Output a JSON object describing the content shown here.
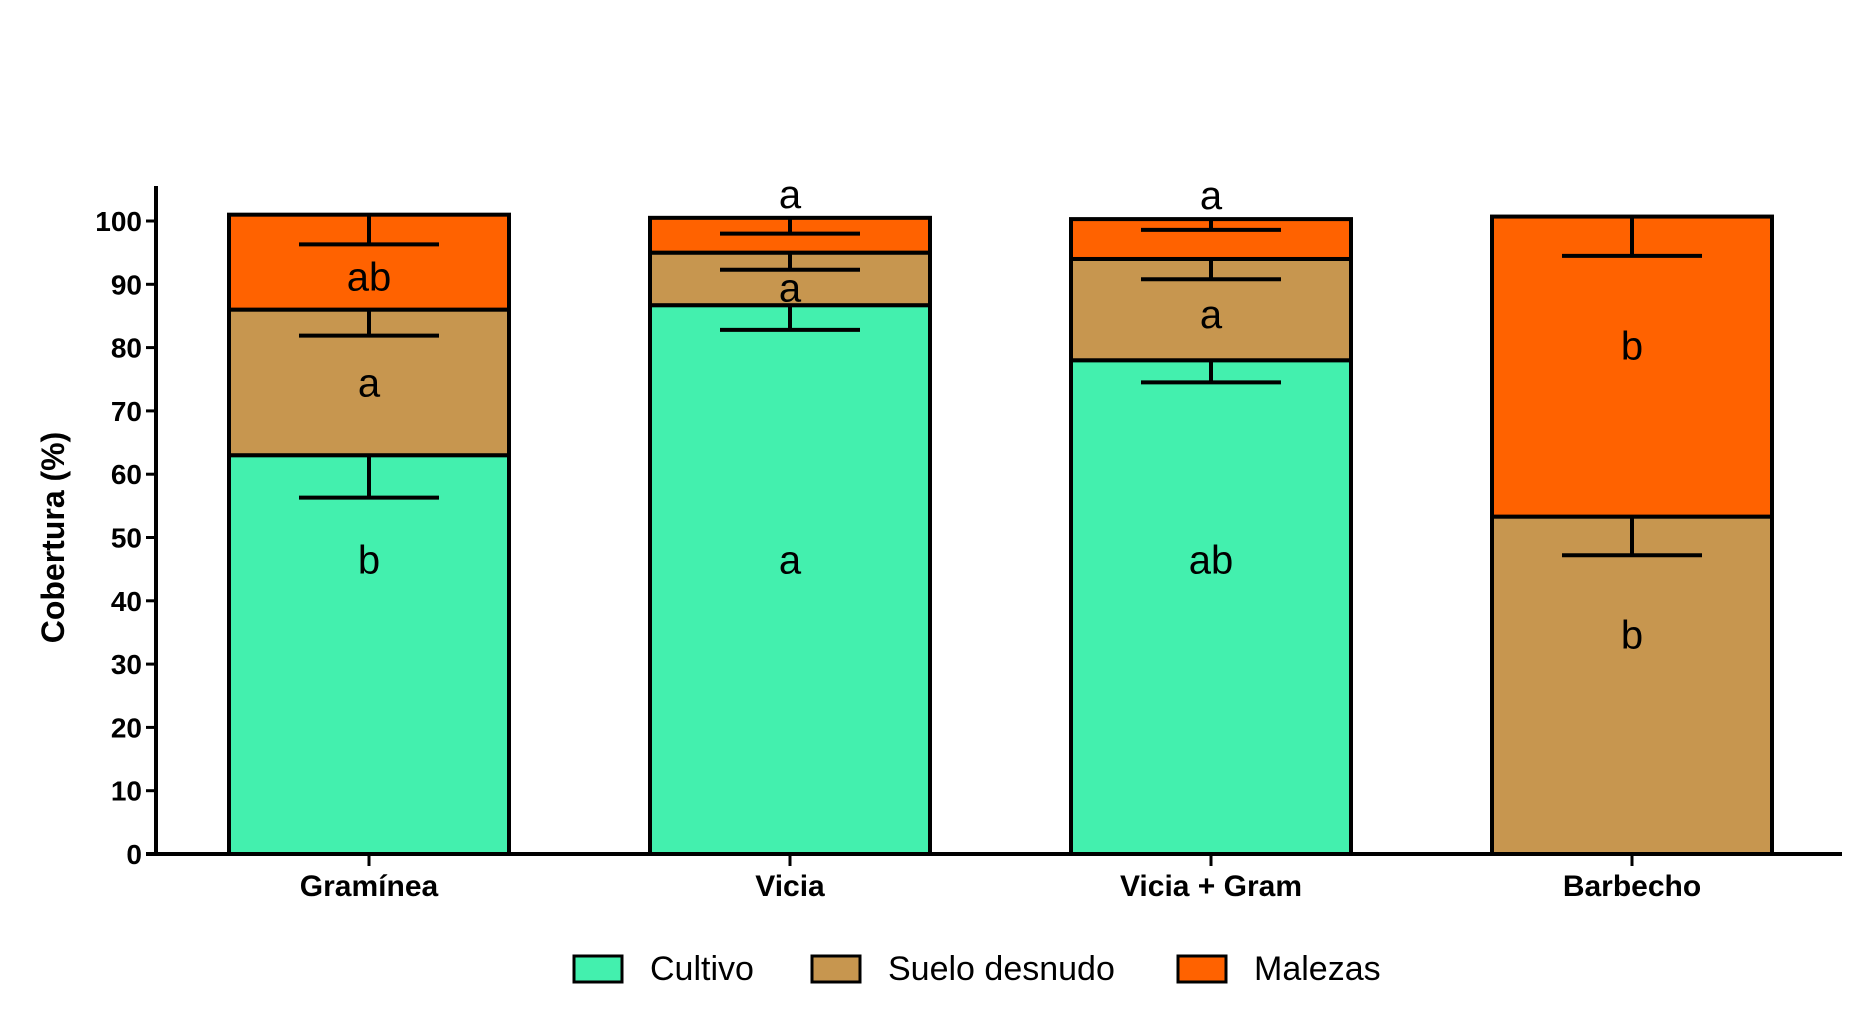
{
  "chart_data": {
    "type": "bar",
    "stacked": true,
    "title": "",
    "xlabel": "",
    "ylabel": "Cobertura (%)",
    "ylim": [
      0,
      100
    ],
    "yticks": [
      0,
      10,
      20,
      30,
      40,
      50,
      60,
      70,
      80,
      90,
      100
    ],
    "categories": [
      "Gramínea",
      "Vicia",
      "Vicia + Gram",
      "Barbecho"
    ],
    "series": [
      {
        "name": "Cultivo",
        "color": "#43F0AE",
        "values": [
          63.0,
          86.7,
          78.0,
          0
        ],
        "error": [
          6.7,
          3.9,
          3.5,
          0
        ]
      },
      {
        "name": "Suelo desnudo",
        "color": "#C7964F",
        "values": [
          23.0,
          8.3,
          16.0,
          53.3
        ],
        "error": [
          4.1,
          2.7,
          3.2,
          6.1
        ]
      },
      {
        "name": "Malezas",
        "color": "#FF6200",
        "values": [
          15.0,
          5.5,
          6.3,
          47.4
        ],
        "error": [
          4.7,
          2.5,
          1.7,
          6.2
        ]
      }
    ],
    "annotations": [
      {
        "category": "Gramínea",
        "series": "Cultivo",
        "text": "b",
        "y": 46.5
      },
      {
        "category": "Gramínea",
        "series": "Suelo desnudo",
        "text": "a",
        "y": 74.5
      },
      {
        "category": "Gramínea",
        "series": "Malezas",
        "text": "ab",
        "y": 91.2
      },
      {
        "category": "Vicia",
        "series": "Cultivo",
        "text": "a",
        "y": 46.5
      },
      {
        "category": "Vicia",
        "series": "Suelo desnudo",
        "text": "a",
        "y": 89.5
      },
      {
        "category": "Vicia",
        "series": "Malezas",
        "text": "a",
        "y": 104.3
      },
      {
        "category": "Vicia + Gram",
        "series": "Cultivo",
        "text": "ab",
        "y": 46.5
      },
      {
        "category": "Vicia + Gram",
        "series": "Suelo desnudo",
        "text": "a",
        "y": 85.3
      },
      {
        "category": "Vicia + Gram",
        "series": "Malezas",
        "text": "a",
        "y": 104.1
      },
      {
        "category": "Barbecho",
        "series": "Suelo desnudo",
        "text": "b",
        "y": 34.7
      },
      {
        "category": "Barbecho",
        "series": "Malezas",
        "text": "b",
        "y": 80.3
      }
    ],
    "legend": {
      "position": "bottom",
      "entries": [
        "Cultivo",
        "Suelo desnudo",
        "Malezas"
      ]
    },
    "grid": false
  }
}
